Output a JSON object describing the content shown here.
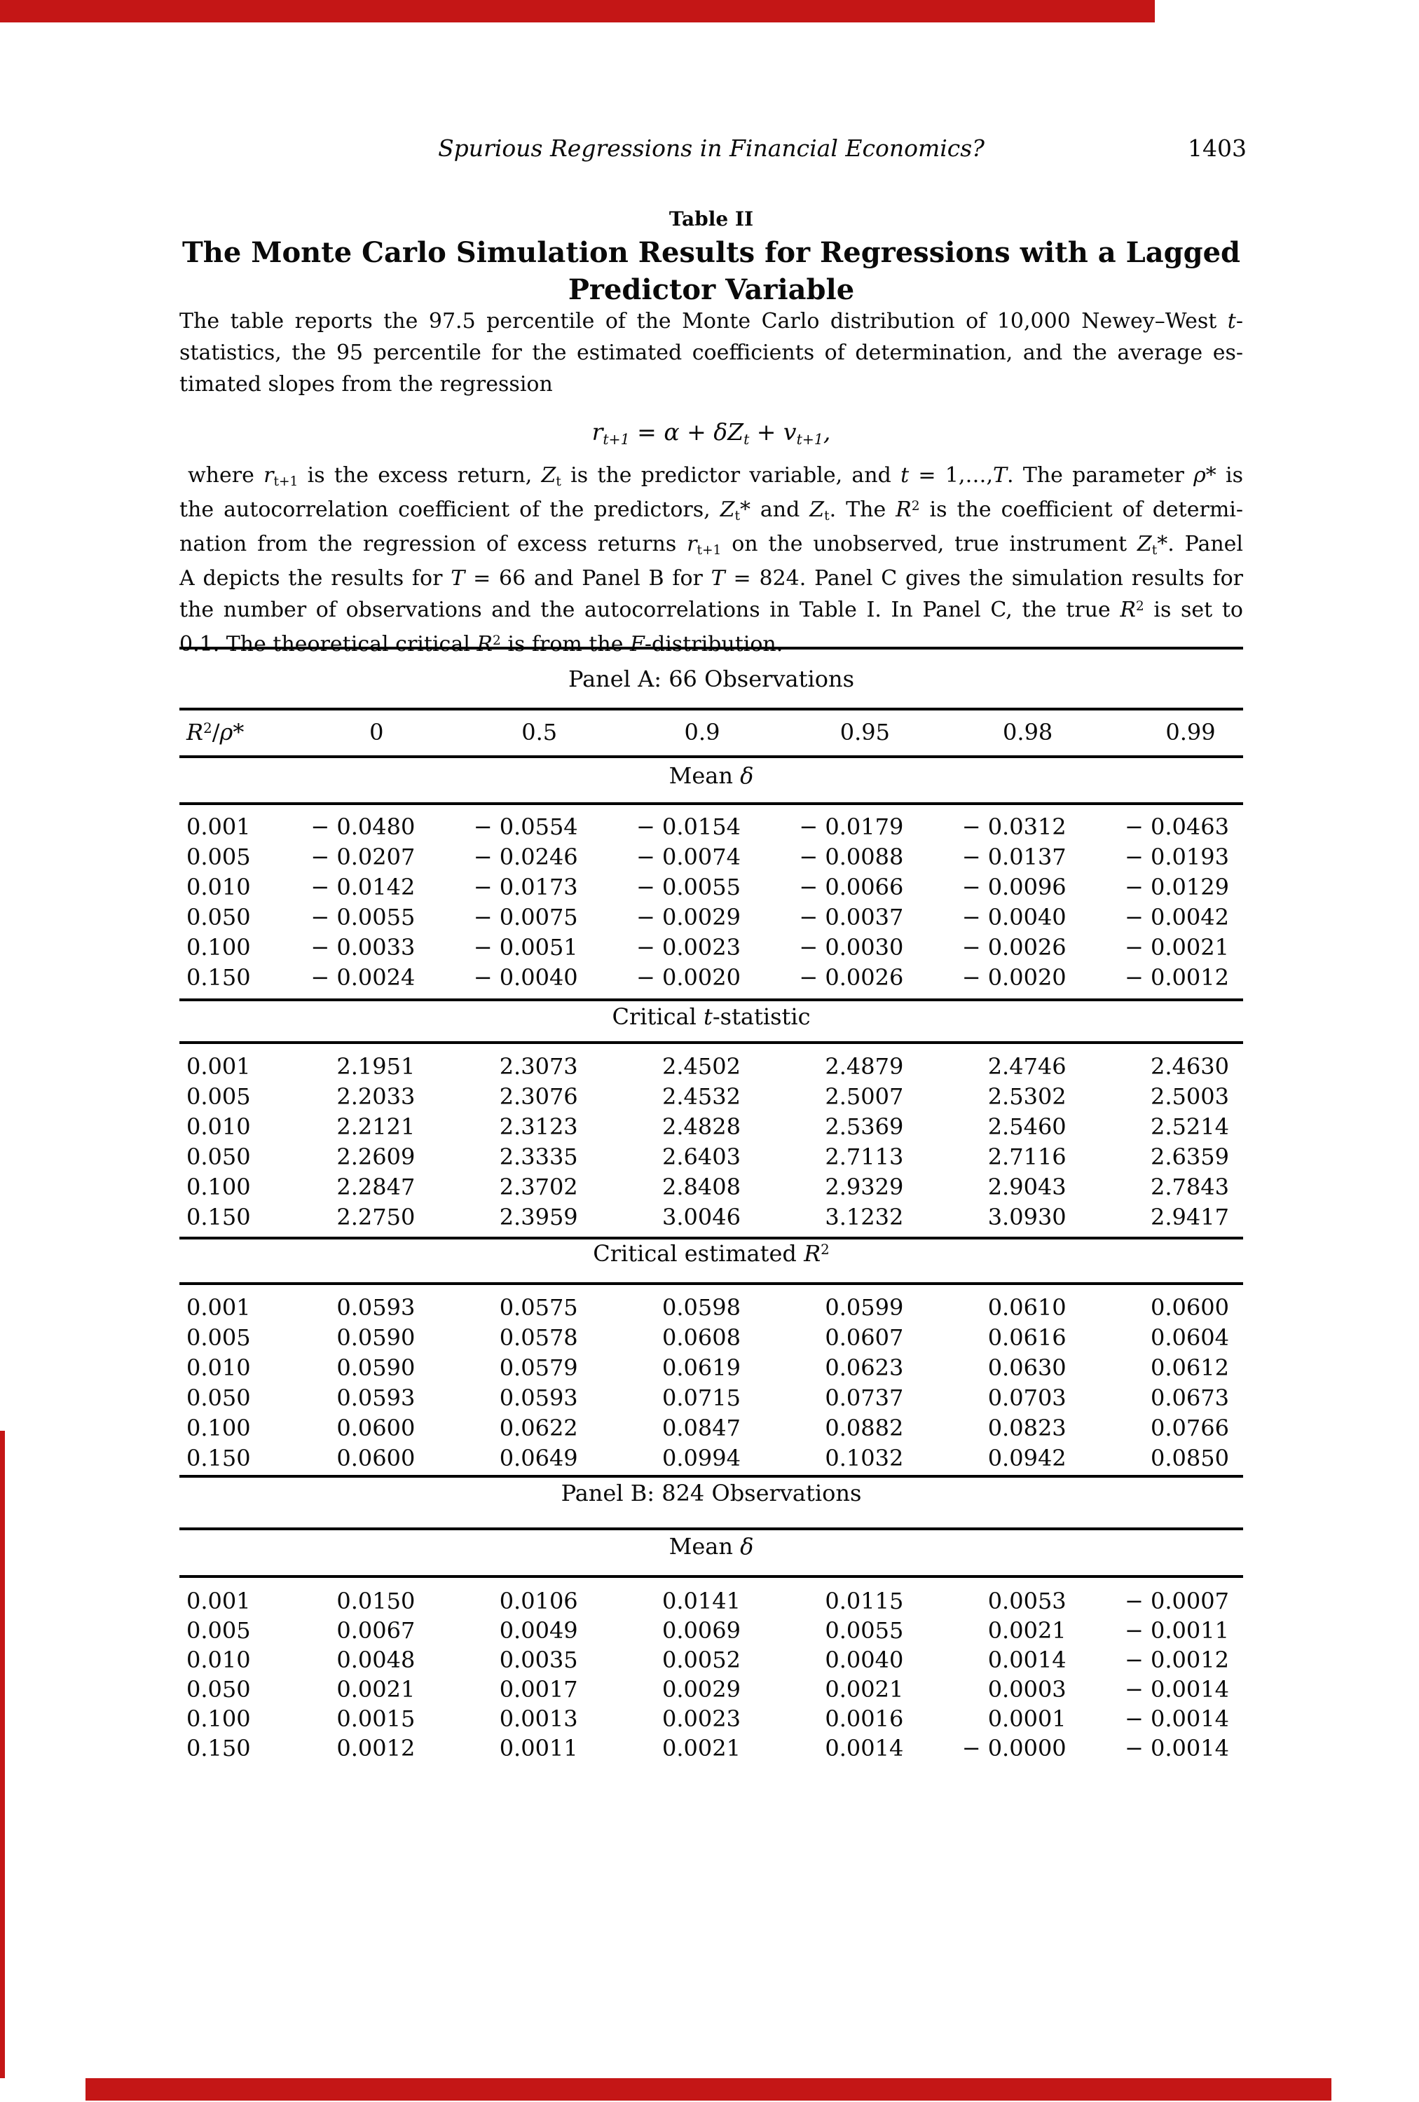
{
  "page": {
    "running_head": "Spurious Regressions in Financial Economics?",
    "page_number": "1403"
  },
  "artifact": {
    "bar_color": "#c41616"
  },
  "table": {
    "label": "Table II",
    "title_lines": [
      "The Monte Carlo Simulation Results for Regressions with a Lagged",
      "Predictor Variable"
    ],
    "caption_lines": [
      [
        "The table reports the 97.5 percentile of the Monte Carlo distribution of 10,000 Newey–West ",
        [
          "i",
          "t"
        ],
        "-"
      ],
      [
        "statistics, the 95 percentile for the estimated coefficients of determination, and the average es-"
      ],
      [
        "timated slopes from the regression"
      ]
    ],
    "equation": [
      [
        "i",
        "r"
      ],
      [
        "sub",
        "t+1"
      ],
      " = ",
      [
        "i",
        "α"
      ],
      " + ",
      [
        "i",
        "δZ"
      ],
      [
        "sub",
        "t"
      ],
      " + ",
      [
        "i",
        "v"
      ],
      [
        "sub",
        "t+1"
      ],
      ","
    ],
    "note_lines": [
      [
        "where ",
        [
          "i",
          "r"
        ],
        [
          "sub",
          "t+1"
        ],
        " is the excess return, ",
        [
          "i",
          "Z"
        ],
        [
          "sub",
          "t"
        ],
        " is the predictor variable, and ",
        [
          "i",
          "t"
        ],
        " = 1,…,",
        [
          "i",
          "T"
        ],
        ". The parameter ",
        [
          "i",
          "ρ"
        ],
        "* is"
      ],
      [
        "the autocorrelation coefficient of the predictors, ",
        [
          "i",
          "Z"
        ],
        [
          "sub",
          "t"
        ],
        "* and ",
        [
          "i",
          "Z"
        ],
        [
          "sub",
          "t"
        ],
        ". The ",
        [
          "i",
          "R"
        ],
        [
          "sup",
          "2"
        ],
        " is the coefficient of determi-"
      ],
      [
        "nation from the regression of excess returns ",
        [
          "i",
          "r"
        ],
        [
          "sub",
          "t+1"
        ],
        " on the unobserved, true instrument ",
        [
          "i",
          "Z"
        ],
        [
          "sub",
          "t"
        ],
        "*. Panel"
      ],
      [
        "A depicts the results for ",
        [
          "i",
          "T"
        ],
        " = 66 and Panel B for ",
        [
          "i",
          "T"
        ],
        " = 824. Panel C gives the simulation results for"
      ],
      [
        "the number of observations and the autocorrelations in Table I. In Panel C, the true ",
        [
          "i",
          "R"
        ],
        [
          "sup",
          "2"
        ],
        " is set to"
      ],
      [
        "0.1. The theoretical critical ",
        [
          "i",
          "R"
        ],
        [
          "sup",
          "2"
        ],
        " is from the ",
        [
          "i",
          "F"
        ],
        "-distribution."
      ]
    ],
    "columns": {
      "corner": [
        [
          "i",
          "R"
        ],
        [
          "sup",
          "2"
        ],
        "/",
        [
          "i",
          "ρ"
        ],
        "*"
      ],
      "values": [
        "0",
        "0.5",
        "0.9",
        "0.95",
        "0.98",
        "0.99"
      ]
    }
  },
  "panel_a": {
    "title": "Panel A: 66 Observations",
    "sections": [
      {
        "title": [
          "Mean ",
          [
            "i",
            "δ"
          ]
        ],
        "rows": [
          {
            "label": "0.001",
            "values": [
              "− 0.0480",
              "− 0.0554",
              "− 0.0154",
              "− 0.0179",
              "− 0.0312",
              "− 0.0463"
            ]
          },
          {
            "label": "0.005",
            "values": [
              "− 0.0207",
              "− 0.0246",
              "− 0.0074",
              "− 0.0088",
              "− 0.0137",
              "− 0.0193"
            ]
          },
          {
            "label": "0.010",
            "values": [
              "− 0.0142",
              "− 0.0173",
              "− 0.0055",
              "− 0.0066",
              "− 0.0096",
              "− 0.0129"
            ]
          },
          {
            "label": "0.050",
            "values": [
              "− 0.0055",
              "− 0.0075",
              "− 0.0029",
              "− 0.0037",
              "− 0.0040",
              "− 0.0042"
            ]
          },
          {
            "label": "0.100",
            "values": [
              "− 0.0033",
              "− 0.0051",
              "− 0.0023",
              "− 0.0030",
              "− 0.0026",
              "− 0.0021"
            ]
          },
          {
            "label": "0.150",
            "values": [
              "− 0.0024",
              "− 0.0040",
              "− 0.0020",
              "− 0.0026",
              "− 0.0020",
              "− 0.0012"
            ]
          }
        ]
      },
      {
        "title": [
          "Critical ",
          [
            "i",
            "t"
          ],
          "-statistic"
        ],
        "rows": [
          {
            "label": "0.001",
            "values": [
              "2.1951",
              "2.3073",
              "2.4502",
              "2.4879",
              "2.4746",
              "2.4630"
            ]
          },
          {
            "label": "0.005",
            "values": [
              "2.2033",
              "2.3076",
              "2.4532",
              "2.5007",
              "2.5302",
              "2.5003"
            ]
          },
          {
            "label": "0.010",
            "values": [
              "2.2121",
              "2.3123",
              "2.4828",
              "2.5369",
              "2.5460",
              "2.5214"
            ]
          },
          {
            "label": "0.050",
            "values": [
              "2.2609",
              "2.3335",
              "2.6403",
              "2.7113",
              "2.7116",
              "2.6359"
            ]
          },
          {
            "label": "0.100",
            "values": [
              "2.2847",
              "2.3702",
              "2.8408",
              "2.9329",
              "2.9043",
              "2.7843"
            ]
          },
          {
            "label": "0.150",
            "values": [
              "2.2750",
              "2.3959",
              "3.0046",
              "3.1232",
              "3.0930",
              "2.9417"
            ]
          }
        ]
      },
      {
        "title": [
          "Critical estimated ",
          [
            "i",
            "R"
          ],
          [
            "sup",
            "2"
          ]
        ],
        "rows": [
          {
            "label": "0.001",
            "values": [
              "0.0593",
              "0.0575",
              "0.0598",
              "0.0599",
              "0.0610",
              "0.0600"
            ]
          },
          {
            "label": "0.005",
            "values": [
              "0.0590",
              "0.0578",
              "0.0608",
              "0.0607",
              "0.0616",
              "0.0604"
            ]
          },
          {
            "label": "0.010",
            "values": [
              "0.0590",
              "0.0579",
              "0.0619",
              "0.0623",
              "0.0630",
              "0.0612"
            ]
          },
          {
            "label": "0.050",
            "values": [
              "0.0593",
              "0.0593",
              "0.0715",
              "0.0737",
              "0.0703",
              "0.0673"
            ]
          },
          {
            "label": "0.100",
            "values": [
              "0.0600",
              "0.0622",
              "0.0847",
              "0.0882",
              "0.0823",
              "0.0766"
            ]
          },
          {
            "label": "0.150",
            "values": [
              "0.0600",
              "0.0649",
              "0.0994",
              "0.1032",
              "0.0942",
              "0.0850"
            ]
          }
        ]
      }
    ]
  },
  "panel_b": {
    "title": "Panel B: 824 Observations",
    "sections": [
      {
        "title": [
          "Mean ",
          [
            "i",
            "δ"
          ]
        ],
        "rows": [
          {
            "label": "0.001",
            "values": [
              "0.0150",
              "0.0106",
              "0.0141",
              "0.0115",
              "0.0053",
              "− 0.0007"
            ]
          },
          {
            "label": "0.005",
            "values": [
              "0.0067",
              "0.0049",
              "0.0069",
              "0.0055",
              "0.0021",
              "− 0.0011"
            ]
          },
          {
            "label": "0.010",
            "values": [
              "0.0048",
              "0.0035",
              "0.0052",
              "0.0040",
              "0.0014",
              "− 0.0012"
            ]
          },
          {
            "label": "0.050",
            "values": [
              "0.0021",
              "0.0017",
              "0.0029",
              "0.0021",
              "0.0003",
              "− 0.0014"
            ]
          },
          {
            "label": "0.100",
            "values": [
              "0.0015",
              "0.0013",
              "0.0023",
              "0.0016",
              "0.0001",
              "− 0.0014"
            ]
          },
          {
            "label": "0.150",
            "values": [
              "0.0012",
              "0.0011",
              "0.0021",
              "0.0014",
              "− 0.0000",
              "− 0.0014"
            ]
          }
        ]
      }
    ]
  },
  "rules_y": [
    923,
    1010,
    1078,
    1145,
    1425,
    1486,
    1765,
    1830,
    2105,
    2180,
    2248
  ]
}
